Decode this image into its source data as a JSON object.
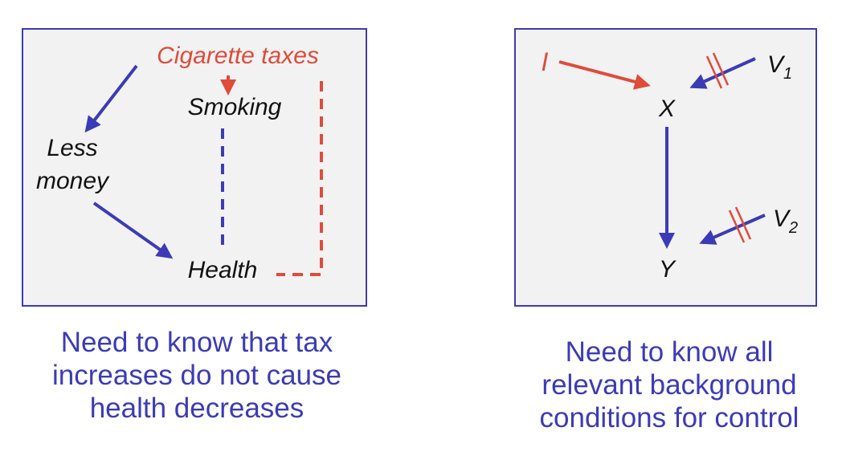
{
  "left_diagram": {
    "nodes": {
      "cigarette_taxes": "Cigarette taxes",
      "smoking": "Smoking",
      "less_money_line1": "Less",
      "less_money_line2": "money",
      "health": "Health"
    },
    "caption": "Need to know that tax\nincreases do not cause\nhealth decreases"
  },
  "right_diagram": {
    "nodes": {
      "i": "I",
      "x": "X",
      "y": "Y",
      "v1": "V",
      "v1_sub": "1",
      "v2": "V",
      "v2_sub": "2"
    },
    "caption": "Need to know all\nrelevant background\nconditions for control"
  },
  "colors": {
    "blue": "#3b3bb8",
    "red": "#e04b3a",
    "panel_bg": "#f2f2f2"
  }
}
